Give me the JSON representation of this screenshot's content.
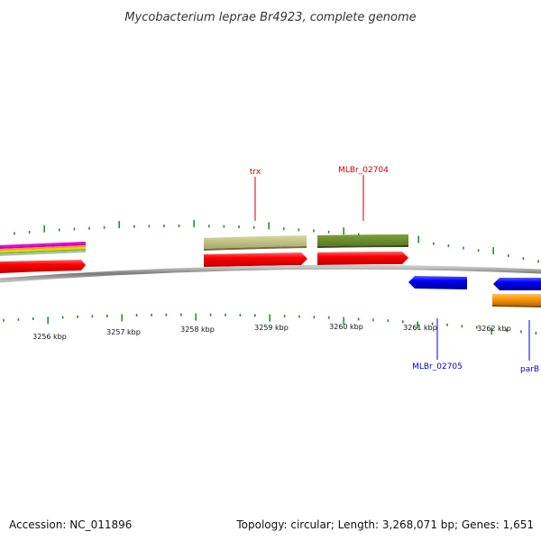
{
  "title": "Mycobacterium leprae Br4923, complete genome",
  "footer": {
    "accession": "Accession: NC_011896",
    "summary": "Topology: circular; Length: 3,268,071 bp; Genes: 1,651"
  },
  "colors": {
    "backbone": "#8c8c8c",
    "tick": "#2e8b2e",
    "forward_cds": "#ff0000",
    "reverse_cds": "#0000ff",
    "label_forward": "#cc0000",
    "label_reverse": "#0000cc"
  },
  "ruler": {
    "unit": "kbp",
    "labels": [
      "3256 kbp",
      "3257 kbp",
      "3258 kbp",
      "3259 kbp",
      "3260 kbp",
      "3261 kbp",
      "3262 kbp"
    ]
  },
  "genes": [
    {
      "name": "trx",
      "strand": "+",
      "label": "trx"
    },
    {
      "name": "MLBr_02704",
      "strand": "+",
      "label": "MLBr_02704"
    },
    {
      "name": "MLBr_02705",
      "strand": "-",
      "label": "MLBr_02705"
    },
    {
      "name": "parB",
      "strand": "-",
      "label": "parB"
    }
  ]
}
